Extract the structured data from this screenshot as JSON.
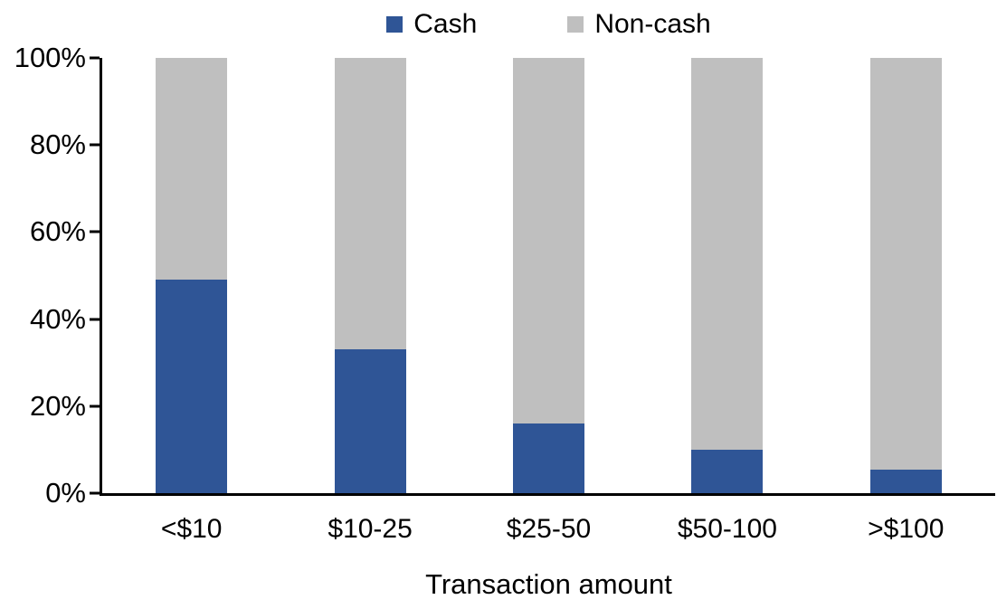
{
  "figure": {
    "background": "#ffffff",
    "axis_color": "#000000",
    "text_color": "#000000"
  },
  "legend": {
    "position": "top",
    "items": [
      {
        "label": "Cash",
        "color": "#2F5596",
        "icon": "square-swatch-icon"
      },
      {
        "label": "Non-cash",
        "color": "#BFBFBF",
        "icon": "square-swatch-icon"
      }
    ]
  },
  "chart_data": {
    "type": "bar",
    "stacked": true,
    "normalized_to_100_percent": true,
    "title": "",
    "xlabel": "Transaction amount",
    "ylabel": "",
    "categories": [
      "<$10",
      "$10-25",
      "$25-50",
      "$50-100",
      ">$100"
    ],
    "series": [
      {
        "name": "Cash",
        "color": "#2F5596",
        "values": [
          49,
          33,
          16,
          10,
          5.5
        ]
      },
      {
        "name": "Non-cash",
        "color": "#BFBFBF",
        "values": [
          51,
          67,
          84,
          90,
          94.5
        ]
      }
    ],
    "ylim": [
      0,
      100
    ],
    "ytick_values": [
      0,
      20,
      40,
      60,
      80,
      100
    ],
    "ytick_labels": [
      "0%",
      "20%",
      "40%",
      "60%",
      "80%",
      "100%"
    ],
    "grid": false,
    "legend_position": "top"
  }
}
